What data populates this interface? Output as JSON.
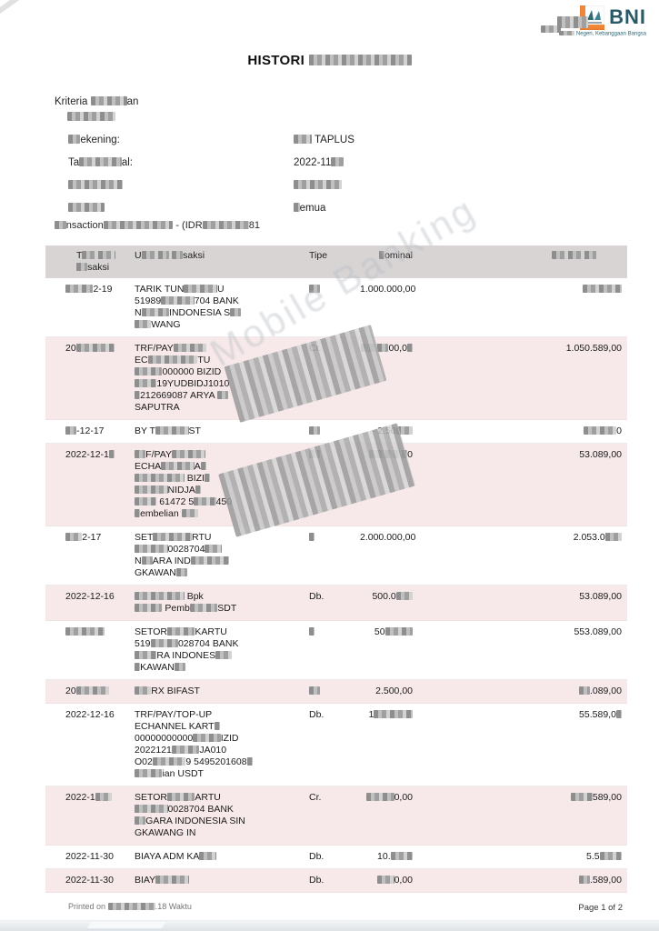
{
  "brand": {
    "name": "BNI",
    "tagline": "▒▒▒▒▒ Negeri, Kebanggaan Bangsa"
  },
  "title": "HISTORI ▒▒▒▒▒▒▒▒▒▒▒▒▒",
  "criteria": {
    "heading": "Kriteria ▒▒▒▒▒▒an",
    "heading_sub": "▒▒▒▒▒▒▒▒",
    "rows": [
      {
        "label": "▒▒ekening:",
        "value": "▒▒▒ TAPLUS"
      },
      {
        "label": "Ta▒▒▒▒▒▒▒al:",
        "value": "2022-11▒▒"
      },
      {
        "label": "▒▒▒▒▒▒▒▒▒",
        "value": "▒▒▒▒▒▒▒▒"
      },
      {
        "label": "▒▒▒▒▒▒",
        "value": "▒emua"
      }
    ]
  },
  "account_line": "▒▒nsaction▒▒▒▒▒▒▒▒▒▒▒▒ - (IDR▒▒▒▒▒▒▒▒81",
  "watermark": "Mobile Banking",
  "table": {
    "headers": [
      [
        "T▒▒▒▒▒▒",
        "▒▒saksi"
      ],
      [
        "U▒▒▒▒▒ ▒▒saksi"
      ],
      [
        "Tipe"
      ],
      [
        "▒ominal"
      ],
      [
        "▒▒▒▒▒▒▒▒"
      ]
    ],
    "rows": [
      {
        "pink": false,
        "date": "▒▒▒▒▒2-19",
        "desc": [
          "TARIK TUN▒▒▒▒▒▒U",
          "51989▒▒▒▒▒▒704 BANK",
          "N▒▒▒▒▒INDONESIA S▒▒",
          "▒▒▒WANG"
        ],
        "tipe": "▒▒",
        "nominal": "1.000.000,00",
        "saldo": "▒▒▒▒▒▒▒"
      },
      {
        "pink": true,
        "date": "20▒▒▒▒▒▒▒",
        "desc": [
          "TRF/PAY▒▒▒▒▒▒",
          "EC▒▒▒▒▒▒▒▒▒TU",
          "▒▒▒▒▒000000 BIZID",
          "▒▒▒▒19YUDBIDJ1010",
          "▒212669087 ARYA ▒▒",
          "SAPUTRA"
        ],
        "tipe": "Cr.",
        "nominal": "▒▒▒▒▒00,0▒",
        "saldo": "1.050.589,00"
      },
      {
        "pink": false,
        "date": "▒▒-12-17",
        "desc": [
          "BY T▒▒▒▒▒▒ST"
        ],
        "tipe": "▒▒",
        "nominal": "2.50▒▒▒",
        "saldo": "▒▒▒▒▒▒0"
      },
      {
        "pink": true,
        "date": "2022-12-1▒",
        "desc": [
          "▒▒F/PAY▒▒▒▒▒▒",
          "ECHA▒▒▒▒▒▒A▒",
          "▒▒▒▒▒▒▒▒▒ BIZI▒",
          "▒▒▒▒▒▒NIDJA▒",
          "▒▒▒▒ 61472 5▒▒▒▒450",
          "▒embelian ▒▒▒"
        ],
        "tipe": "▒▒",
        "nominal": "▒▒▒▒▒▒▒0",
        "saldo": "53.089,00"
      },
      {
        "pink": false,
        "date": "▒▒▒2-17",
        "desc": [
          "SET▒▒▒▒▒▒▒RTU",
          "▒▒▒▒▒▒0028704▒▒▒",
          "N▒▒ARA IND▒▒▒▒▒▒▒",
          "GKAWAN▒▒"
        ],
        "tipe": "▒",
        "nominal": "2.000.000,00",
        "saldo": "2.053.0▒▒▒"
      },
      {
        "pink": true,
        "date": "2022-12-16",
        "desc": [
          "▒▒▒▒▒▒▒▒▒ Bpk",
          "▒▒▒▒▒ Pemb▒▒▒▒▒SDT"
        ],
        "tipe": "Db.",
        "nominal": "500.0▒▒▒",
        "saldo": "53.089,00"
      },
      {
        "pink": false,
        "date": "▒▒▒▒▒▒▒",
        "desc": [
          "SETOR▒▒▒▒▒KARTU",
          "519▒▒▒▒▒028704 BANK",
          "▒▒▒▒RA INDONES▒▒▒",
          "▒KAWAN▒▒"
        ],
        "tipe": "▒",
        "nominal": "50▒▒▒▒▒",
        "saldo": "553.089,00"
      },
      {
        "pink": true,
        "date": "20▒▒▒▒▒▒",
        "desc": [
          "▒▒▒RX BIFAST"
        ],
        "tipe": "▒▒",
        "nominal": "2.500,00",
        "saldo": "▒▒.089,00"
      },
      {
        "pink": false,
        "date": "2022-12-16",
        "desc": [
          "TRF/PAY/TOP-UP",
          "ECHANNEL KART▒",
          "00000000000▒▒▒▒▒IZID",
          "2022121▒▒▒▒▒JA010",
          "O02▒▒▒▒▒▒9 5495201608▒",
          "▒▒▒▒▒ian USDT"
        ],
        "tipe": "Db.",
        "nominal": "1▒▒▒▒▒▒▒",
        "saldo": "55.589,0▒"
      },
      {
        "pink": true,
        "date": "2022-1▒▒▒",
        "desc": [
          "SETOR▒▒▒▒▒ARTU",
          "▒▒▒▒▒▒0028704 BANK",
          "▒▒GARA INDONESIA SIN",
          "GKAWANG IN"
        ],
        "tipe": "Cr.",
        "nominal": "▒▒▒▒▒0,00",
        "saldo": "▒▒▒▒589,00"
      },
      {
        "pink": false,
        "date": "2022-11-30",
        "desc": [
          "BIAYA ADM KA▒▒▒"
        ],
        "tipe": "Db.",
        "nominal": "10.▒▒▒▒",
        "saldo": "5.5▒▒▒▒"
      },
      {
        "pink": true,
        "date": "2022-11-30",
        "desc": [
          "BIAY▒▒▒▒▒▒"
        ],
        "tipe": "Db.",
        "nominal": "▒▒▒0,00",
        "saldo": "▒▒.589,00"
      }
    ]
  },
  "footer": {
    "printed": "Printed on ▒▒▒▒▒▒▒▒▒▒.18 Waktu",
    "page": "Page 1 of 2"
  }
}
